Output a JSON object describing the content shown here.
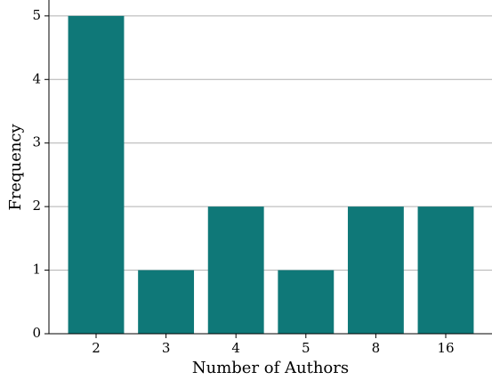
{
  "chart_data": {
    "type": "bar",
    "x_label": "Number of Authors",
    "y_label": "Frequency",
    "categories": [
      "2",
      "3",
      "4",
      "5",
      "8",
      "16"
    ],
    "values": [
      5,
      1,
      2,
      1,
      2,
      2
    ],
    "color": "#0f7878",
    "ylim": [
      0,
      5.25
    ],
    "yticks": [
      0,
      1,
      2,
      3,
      4,
      5
    ],
    "grid": true
  }
}
